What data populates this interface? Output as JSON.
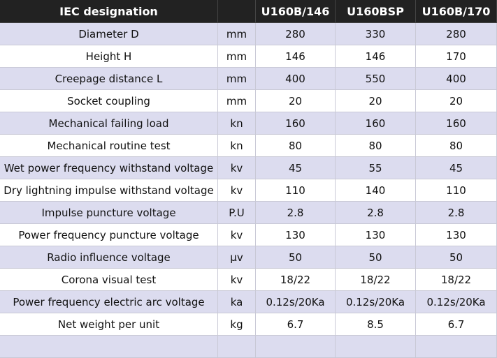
{
  "table": {
    "header": [
      "IEC designation",
      "U160B/146",
      "U160BSP",
      "U160B/170"
    ],
    "rows": [
      [
        "Diameter D",
        "mm",
        "280",
        "330",
        "280"
      ],
      [
        "Height H",
        "mm",
        "146",
        "146",
        "170"
      ],
      [
        "Creepage distance L",
        "mm",
        "400",
        "550",
        "400"
      ],
      [
        "Socket coupling",
        "mm",
        "20",
        "20",
        "20"
      ],
      [
        "Mechanical failing load",
        "kn",
        "160",
        "160",
        "160"
      ],
      [
        "Mechanical routine test",
        "kn",
        "80",
        "80",
        "80"
      ],
      [
        "Wet power frequency withstand voltage",
        "kv",
        "45",
        "55",
        "45"
      ],
      [
        "Dry lightning impulse withstand voltage",
        "kv",
        "110",
        "140",
        "110"
      ],
      [
        "Impulse puncture voltage",
        "P.U",
        "2.8",
        "2.8",
        "2.8"
      ],
      [
        "Power frequency puncture voltage",
        "kv",
        "130",
        "130",
        "130"
      ],
      [
        "Radio influence voltage",
        "μv",
        "50",
        "50",
        "50"
      ],
      [
        "Corona visual test",
        "kv",
        "18/22",
        "18/22",
        "18/22"
      ],
      [
        "Power frequency electric arc voltage",
        "ka",
        "0.12s/20Ka",
        "0.12s/20Ka",
        "0.12s/20Ka"
      ],
      [
        "Net weight per unit",
        "kg",
        "6.7",
        "8.5",
        "6.7"
      ]
    ]
  }
}
